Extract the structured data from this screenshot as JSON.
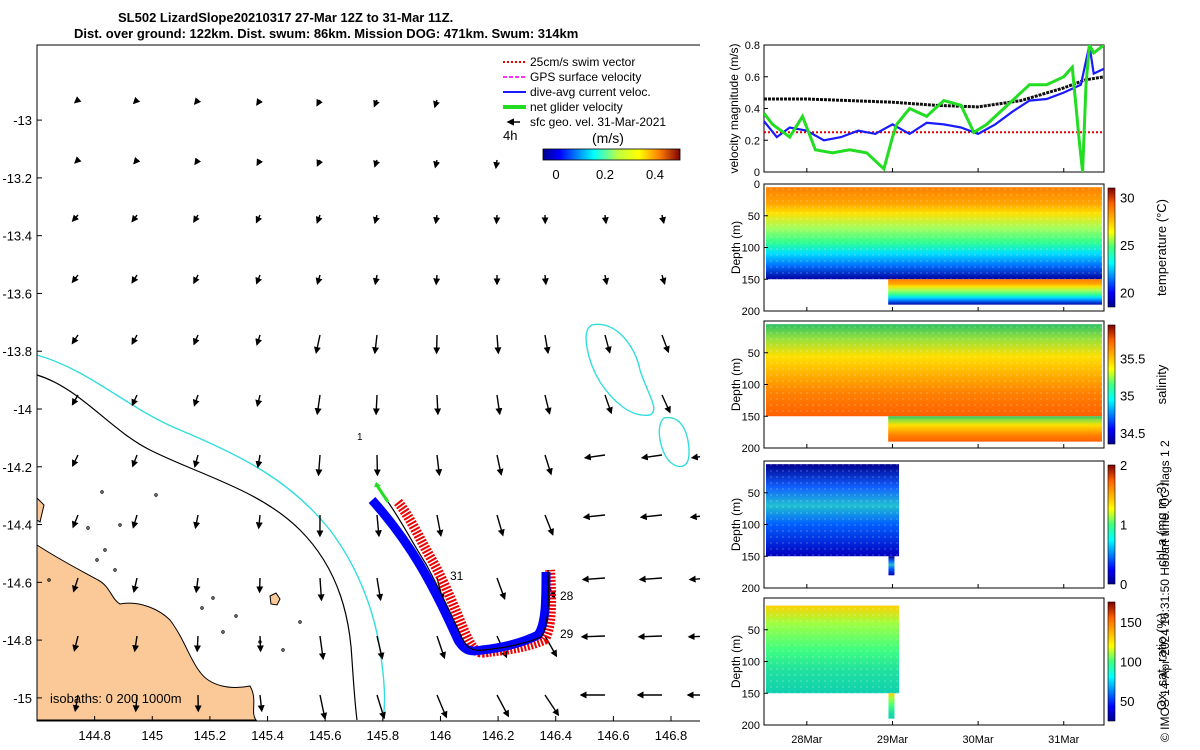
{
  "title": {
    "line1": "SL502 LizardSlope20210317 27-Mar 12Z to 31-Mar 11Z.",
    "line2": "Dist. over ground: 122km. Dist. swum: 86km. Mission DOG: 471km. Swum: 314km"
  },
  "credit": "© IMOS 14-Apr-2024 16:31:50 Hobart time. QC flags 1  2",
  "colors": {
    "land": "#fbc998",
    "isobath_200": "#000000",
    "isobath_1000": "#33dddd",
    "gps_vector": "#ff33ff",
    "swim_vector": "#e00000",
    "dive_avg": "#1a1aff",
    "net_glider": "#22dd22",
    "track_red": "#ee0000",
    "track_blue": "#0000ff"
  },
  "map": {
    "legend": [
      {
        "label": "25cm/s swim vector",
        "color": "#e00000",
        "style": "dotted"
      },
      {
        "label": "GPS surface velocity",
        "color": "#ff33ff",
        "style": "dashed"
      },
      {
        "label": "dive-avg current veloc.",
        "color": "#1a1aff",
        "style": "solid"
      },
      {
        "label": "net glider velocity",
        "color": "#22dd22",
        "style": "thick"
      },
      {
        "label": "sfc geo. vel. 31-Mar-2021",
        "color": "#000000",
        "style": "arrow"
      }
    ],
    "colorbar_label": "(m/s)",
    "colorbar_side_label": "4h",
    "colorbar_ticks": [
      "0",
      "0.2",
      "0.4"
    ],
    "isobath_label": "isobaths: 0   200   1000m",
    "track_day_labels": [
      "31",
      "28",
      "29",
      "1"
    ]
  },
  "chart_data": [
    {
      "type": "map",
      "xlim": [
        144.6,
        146.97
      ],
      "ylim": [
        -15.08,
        -12.74
      ],
      "xticks": [
        144.8,
        145,
        145.2,
        145.4,
        145.6,
        145.8,
        146,
        146.2,
        146.4,
        146.6,
        146.8
      ],
      "yticks": [
        -13,
        -13.2,
        -13.4,
        -13.6,
        -13.8,
        -14,
        -14.2,
        -14.4,
        -14.6,
        -14.8,
        -15
      ],
      "track": [
        [
          145.76,
          -14.36
        ],
        [
          145.84,
          -14.44
        ],
        [
          145.91,
          -14.52
        ],
        [
          145.98,
          -14.6
        ],
        [
          146.04,
          -14.7
        ],
        [
          146.09,
          -14.8
        ],
        [
          146.15,
          -14.84
        ],
        [
          146.26,
          -14.83
        ],
        [
          146.38,
          -14.8
        ],
        [
          146.4,
          -14.7
        ],
        [
          146.4,
          -14.59
        ]
      ],
      "net_glider_start": [
        [
          145.76,
          -14.36
        ],
        [
          145.73,
          -14.29
        ]
      ]
    },
    {
      "type": "line",
      "ylabel": "velocity magnitude (m/s)",
      "ylim": [
        0,
        0.8
      ],
      "yticks": [
        0,
        0.2,
        0.4,
        0.6,
        0.8
      ],
      "x_range_days": [
        27.5,
        31.47
      ],
      "series": [
        {
          "color": "#e00000",
          "x": [
            27.5,
            31.47
          ],
          "y": [
            0.25,
            0.25
          ]
        },
        {
          "color": "#111111",
          "x": [
            27.5,
            28,
            28.5,
            29,
            29.5,
            30,
            30.5,
            31,
            31.25,
            31.47
          ],
          "y": [
            0.46,
            0.46,
            0.45,
            0.44,
            0.42,
            0.41,
            0.45,
            0.53,
            0.58,
            0.6
          ]
        },
        {
          "color": "#1a1aff",
          "x": [
            27.5,
            27.65,
            27.8,
            28,
            28.2,
            28.4,
            28.6,
            28.8,
            29,
            29.2,
            29.4,
            29.6,
            29.8,
            30,
            30.2,
            30.4,
            30.6,
            30.8,
            31,
            31.2,
            31.3,
            31.35,
            31.47
          ],
          "y": [
            0.32,
            0.22,
            0.28,
            0.26,
            0.2,
            0.22,
            0.26,
            0.24,
            0.3,
            0.24,
            0.31,
            0.3,
            0.28,
            0.24,
            0.3,
            0.38,
            0.45,
            0.46,
            0.5,
            0.55,
            0.8,
            0.62,
            0.65
          ]
        },
        {
          "color": "#22dd22",
          "x": [
            27.5,
            27.6,
            27.8,
            27.95,
            28.1,
            28.3,
            28.5,
            28.7,
            28.9,
            29,
            29.05,
            29.2,
            29.4,
            29.6,
            29.8,
            29.95,
            30.1,
            30.3,
            30.6,
            30.8,
            31,
            31.1,
            31.18,
            31.22,
            31.26,
            31.3,
            31.35,
            31.47
          ],
          "y": [
            0.37,
            0.3,
            0.22,
            0.35,
            0.14,
            0.12,
            0.14,
            0.12,
            0.02,
            0.22,
            0.3,
            0.4,
            0.35,
            0.45,
            0.42,
            0.25,
            0.3,
            0.4,
            0.55,
            0.55,
            0.6,
            0.66,
            0.2,
            0.0,
            0.55,
            0.8,
            0.75,
            0.8
          ]
        }
      ]
    },
    {
      "type": "heatmap",
      "ylabel": "Depth (m)",
      "cbar_label": "temperature (°C)",
      "ylim": [
        0,
        200
      ],
      "yticks": [
        0,
        50,
        100,
        150,
        200
      ],
      "clim": [
        18.5,
        31
      ],
      "cticks": [
        20,
        25,
        30
      ],
      "surface_value": 30,
      "bottom_value": 19
    },
    {
      "type": "heatmap",
      "ylabel": "Depth (m)",
      "cbar_label": "salinity",
      "ylim": [
        0,
        200
      ],
      "yticks": [
        50,
        100,
        150,
        200
      ],
      "clim": [
        34.35,
        35.95
      ],
      "cticks": [
        34.5,
        35,
        35.5
      ],
      "surface_value": 34.9,
      "bottom_value": 35.6
    },
    {
      "type": "heatmap",
      "ylabel": "Depth (m)",
      "cbar_label": "chl-a (mg m-3)",
      "ylim": [
        0,
        200
      ],
      "yticks": [
        50,
        100,
        150,
        200
      ],
      "clim": [
        0,
        2
      ],
      "cticks": [
        0,
        1,
        2
      ],
      "surface_value": 0.1,
      "bottom_value": 0.3
    },
    {
      "type": "heatmap",
      "ylabel": "Depth (m)",
      "cbar_label": "Ox. sat. ratio (%)",
      "ylim": [
        0,
        200
      ],
      "yticks": [
        50,
        100,
        150,
        200
      ],
      "clim": [
        25,
        175
      ],
      "cticks": [
        50,
        100,
        150
      ],
      "surface_value": 110,
      "bottom_value": 90
    }
  ],
  "time_axis": {
    "labels": [
      "28Mar",
      "29Mar",
      "30Mar",
      "31Mar"
    ]
  }
}
